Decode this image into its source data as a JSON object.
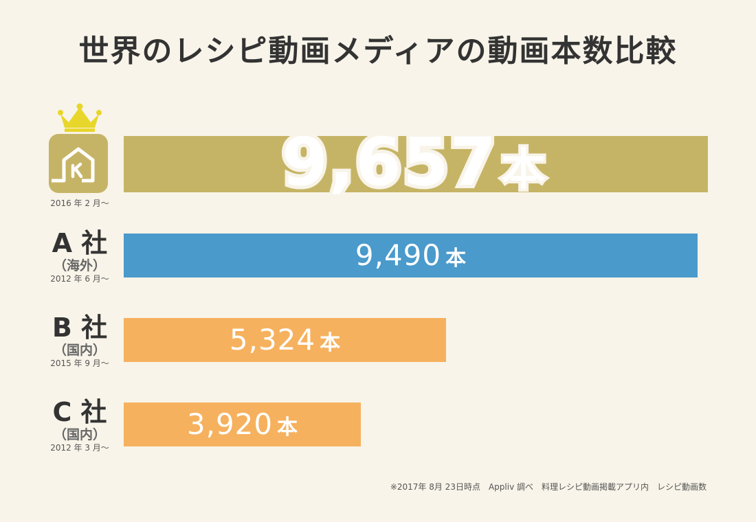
{
  "chart_data": {
    "type": "bar",
    "orientation": "horizontal",
    "title": "世界のレシピ動画メディアの動画本数比較",
    "unit": "本",
    "xlim": [
      0,
      9657
    ],
    "categories": [
      {
        "name": "",
        "region": "",
        "since": "2016 年 2 月〜",
        "value": 9657,
        "value_label": "9,657",
        "color": "#c6b466",
        "has_crown": true
      },
      {
        "name": "A 社",
        "region": "（海外）",
        "since": "2012 年 6 月〜",
        "value": 9490,
        "value_label": "9,490",
        "color": "#4a9acb",
        "has_crown": false
      },
      {
        "name": "B 社",
        "region": "（国内）",
        "since": "2015 年 9 月〜",
        "value": 5324,
        "value_label": "5,324",
        "color": "#f6b15e",
        "has_crown": false
      },
      {
        "name": "C 社",
        "region": "（国内）",
        "since": "2012 年 3 月〜",
        "value": 3920,
        "value_label": "3,920",
        "color": "#f6b15e",
        "has_crown": false
      }
    ],
    "footnote": "※2017年 8月 23日時点　Appliv 調べ　料理レシピ動画掲載アプリ内　レシピ動画数"
  },
  "colors": {
    "background": "#f8f4e9",
    "crown": "#e8d62a",
    "logo": "#c6b466",
    "text": "#333333"
  },
  "icons": {
    "crown": "crown-icon",
    "logo": "house-k-logo-icon"
  }
}
